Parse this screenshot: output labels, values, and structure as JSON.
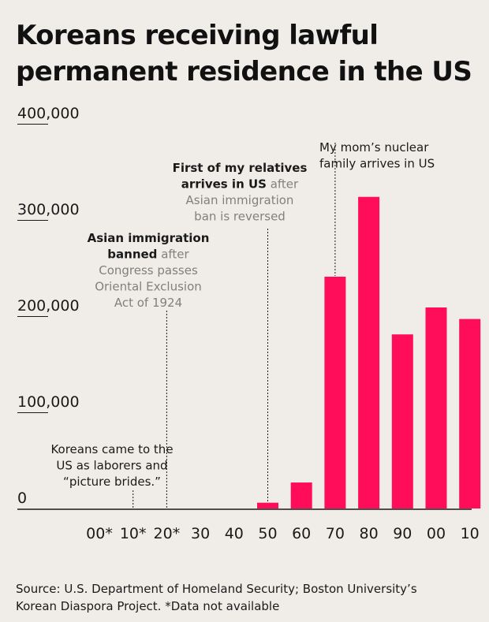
{
  "title_line1": "Koreans receiving lawful",
  "title_line2": "permanent residence in the US",
  "source_line1": "Source: U.S. Department of Homeland Security; Boston University’s",
  "source_line2": "Korean Diaspora Project. *Data not available",
  "colors": {
    "bar": "#ff0d5a",
    "background": "#f0ede8",
    "text": "#1a1a1a",
    "muted_text": "#808080"
  },
  "chart_data": {
    "type": "bar",
    "categories": [
      "00*",
      "10*",
      "20*",
      "30",
      "40",
      "50",
      "60",
      "70",
      "80",
      "90",
      "00",
      "10"
    ],
    "values": [
      null,
      null,
      null,
      0,
      0,
      6000,
      27000,
      241000,
      324000,
      181000,
      209000,
      197000
    ],
    "title": "Koreans receiving lawful permanent residence in the US",
    "ylim": [
      0,
      400000
    ],
    "y_ticks": [
      {
        "value": 0,
        "label": "0"
      },
      {
        "value": 100000,
        "label": "100,000"
      },
      {
        "value": 200000,
        "label": "200,000"
      },
      {
        "value": 300000,
        "label": "300,000"
      },
      {
        "value": 400000,
        "label": "400,000"
      }
    ],
    "grid": false,
    "annotations": [
      {
        "category": "10*",
        "lines": [
          [
            "Koreans came to the"
          ],
          [
            "US as laborers and"
          ],
          [
            "“picture brides.”"
          ]
        ]
      },
      {
        "category": "20*",
        "lines": [
          [
            "Asian immigration",
            ""
          ],
          [
            "banned",
            " after"
          ],
          [
            "Congress passes"
          ],
          [
            "Oriental Exclusion"
          ],
          [
            "Act of 1924"
          ]
        ]
      },
      {
        "category": "50",
        "lines": [
          [
            "First of my relatives",
            ""
          ],
          [
            "arrives in US",
            " after"
          ],
          [
            "Asian immigration"
          ],
          [
            "ban is reversed"
          ]
        ]
      },
      {
        "category": "70",
        "lines": [
          [
            "My mom’s nuclear"
          ],
          [
            "family arrives in US"
          ]
        ]
      }
    ]
  }
}
